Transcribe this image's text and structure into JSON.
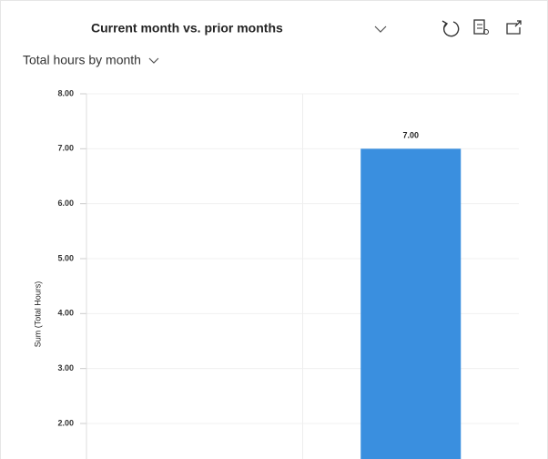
{
  "view_selector": "Current month vs. prior months",
  "chart_data": {
    "type": "bar",
    "title": "Total hours by month",
    "y_label": "Sum (Total Hours)",
    "categories": [
      null,
      null
    ],
    "values": [
      null,
      7
    ],
    "value_labels": [
      null,
      "7.00"
    ],
    "color": "#3a8fdf",
    "ylim": [
      1.35,
      8
    ],
    "yticks": [
      {
        "value": 2,
        "label": "2.00"
      },
      {
        "value": 3,
        "label": "3.00"
      },
      {
        "value": 4,
        "label": "4.00"
      },
      {
        "value": 5,
        "label": "5.00"
      },
      {
        "value": 6,
        "label": "6.00"
      },
      {
        "value": 7,
        "label": "7.00"
      },
      {
        "value": 8,
        "label": "8.00"
      }
    ],
    "grid": true
  }
}
